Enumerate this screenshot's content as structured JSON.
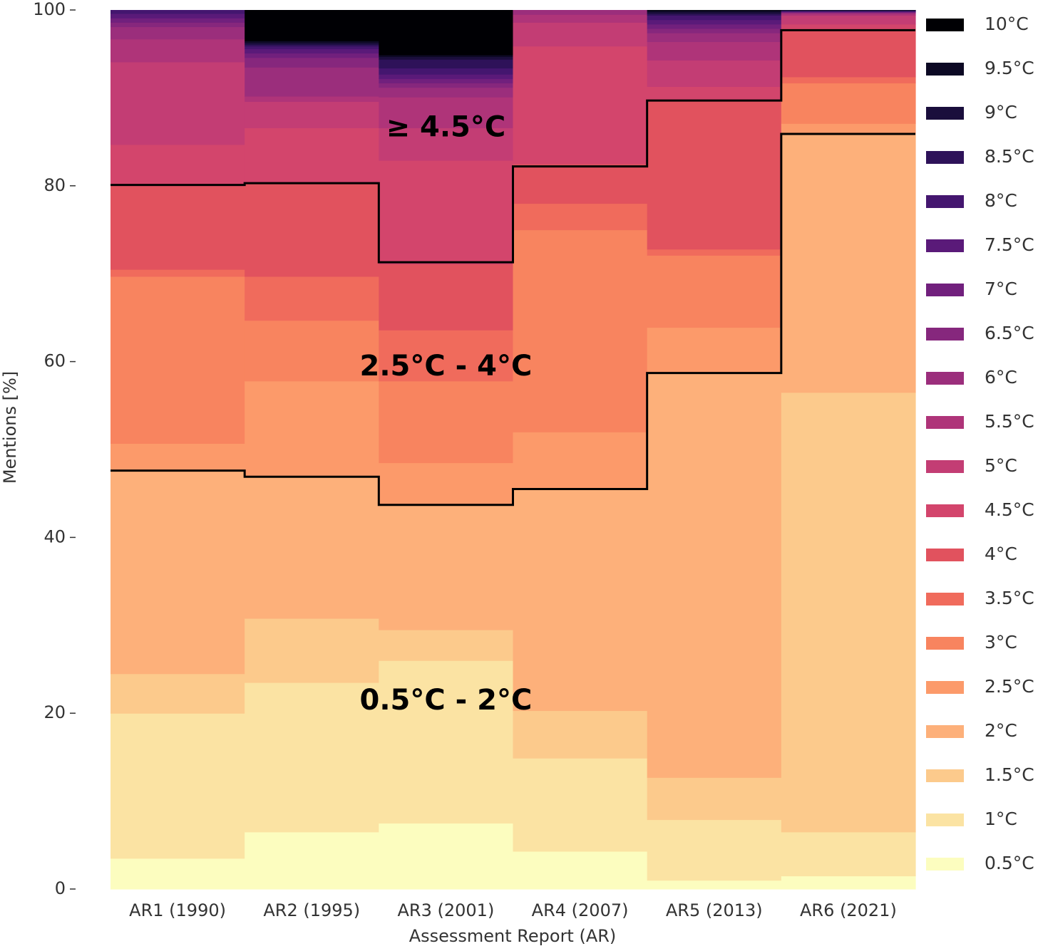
{
  "chart_data": {
    "type": "area",
    "stacked": true,
    "step": true,
    "title": "",
    "xlabel": "Assessment Report (AR)",
    "ylabel": "Mentions [%]",
    "ylim": [
      0,
      100
    ],
    "yticks": [
      "0",
      "20",
      "40",
      "60",
      "80",
      "100"
    ],
    "ytick_values": [
      0,
      20,
      40,
      60,
      80,
      100
    ],
    "grid": false,
    "legend_position": "right",
    "categories": [
      "AR1 (1990)",
      "AR2 (1995)",
      "AR3 (2001)",
      "AR4 (2007)",
      "AR5 (2013)",
      "AR6 (2021)"
    ],
    "series": [
      {
        "name": "0.5°C",
        "color": "#fcfdbf",
        "values": [
          3.5,
          6.5,
          7.5,
          4.3,
          1.0,
          1.5
        ]
      },
      {
        "name": "1°C",
        "color": "#fbe3a3",
        "values": [
          16.5,
          17.0,
          18.5,
          10.6,
          6.9,
          5.0
        ]
      },
      {
        "name": "1.5°C",
        "color": "#fcca8c",
        "values": [
          4.5,
          7.3,
          3.5,
          5.4,
          4.8,
          50.0
        ]
      },
      {
        "name": "2°C",
        "color": "#fdb07a",
        "values": [
          23.2,
          16.2,
          14.2,
          25.3,
          46.0,
          29.5
        ]
      },
      {
        "name": "2.5°C",
        "color": "#fc9a6a",
        "values": [
          3.0,
          10.8,
          4.8,
          6.4,
          5.2,
          1.1
        ]
      },
      {
        "name": "3°C",
        "color": "#f8845f",
        "values": [
          19.0,
          6.9,
          9.3,
          23.0,
          8.2,
          4.6
        ]
      },
      {
        "name": "3.5°C",
        "color": "#f06b5c",
        "values": [
          0.8,
          5.0,
          5.8,
          3.0,
          0.7,
          0.7
        ]
      },
      {
        "name": "4°C",
        "color": "#e1525e",
        "values": [
          9.5,
          10.6,
          7.5,
          4.5,
          17.0,
          5.5
        ]
      },
      {
        "name": "4.5°C",
        "color": "#d3456c",
        "values": [
          4.7,
          6.3,
          11.8,
          13.4,
          1.5,
          0.5
        ]
      },
      {
        "name": "5°C",
        "color": "#c33d74",
        "values": [
          9.4,
          3.0,
          3.7,
          2.7,
          3.0,
          1.0
        ]
      },
      {
        "name": "5.5°C",
        "color": "#af3479",
        "values": [
          2.6,
          0.6,
          3.5,
          0.9,
          2.1,
          0.2
        ]
      },
      {
        "name": "6°C",
        "color": "#9b2e7c",
        "values": [
          1.4,
          3.3,
          1.1,
          1.1,
          1.0,
          0.1
        ]
      },
      {
        "name": "6.5°C",
        "color": "#86277d",
        "values": [
          0.5,
          1.1,
          0.5,
          0.5,
          0.5,
          0.05
        ]
      },
      {
        "name": "7°C",
        "color": "#71207d",
        "values": [
          0.5,
          0.5,
          0.5,
          1.2,
          0.5,
          0.05
        ]
      },
      {
        "name": "7.5°C",
        "color": "#5a1a79",
        "values": [
          0.5,
          0.5,
          0.5,
          0.3,
          0.5,
          0.05
        ]
      },
      {
        "name": "8°C",
        "color": "#44166f",
        "values": [
          0.7,
          0.3,
          0.7,
          0.3,
          0.5,
          0.05
        ]
      },
      {
        "name": "8.5°C",
        "color": "#2e1259",
        "values": [
          0.3,
          0.2,
          1.0,
          0.2,
          0.2,
          0.05
        ]
      },
      {
        "name": "9°C",
        "color": "#1a0e3c",
        "values": [
          0.5,
          0.2,
          0.3,
          0.2,
          0.2,
          0.05
        ]
      },
      {
        "name": "9.5°C",
        "color": "#0c0924",
        "values": [
          0.4,
          0.2,
          0.2,
          0.2,
          0.2,
          0.05
        ]
      },
      {
        "name": "10°C",
        "color": "#000004",
        "values": [
          0.5,
          3.5,
          5.1,
          0.4,
          1.3,
          0.2
        ]
      }
    ],
    "group_lines": [
      {
        "label": "0.5°C - 2°C",
        "values": [
          47.6,
          46.9,
          43.7,
          45.5,
          58.7,
          85.9
        ]
      },
      {
        "label": "2.5°C - 4°C",
        "values": [
          80.1,
          80.3,
          71.3,
          82.2,
          89.7,
          97.7
        ]
      }
    ],
    "annotations": [
      {
        "text": "≥ 4.5°C",
        "x_category_index": 2.5,
        "y": 86.5
      },
      {
        "text": "2.5°C - 4°C",
        "x_category_index": 2.5,
        "y": 59.3
      },
      {
        "text": "0.5°C - 2°C",
        "x_category_index": 2.5,
        "y": 21.3
      }
    ]
  }
}
